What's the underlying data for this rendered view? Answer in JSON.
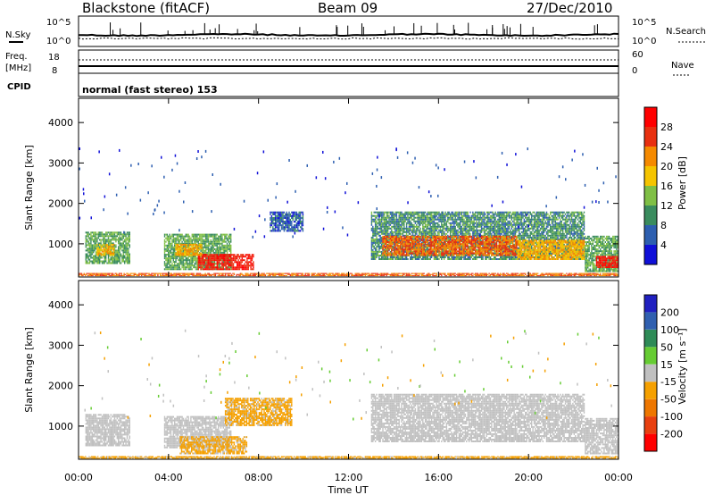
{
  "header": {
    "station": "Blackstone (fitACF)",
    "beam": "Beam 09",
    "date": "27/Dec/2010"
  },
  "aux_panels": {
    "nsky_label": "N.Sky",
    "nsky_ticks": [
      "10^5",
      "10^0"
    ],
    "nsearch_label": "N.Search",
    "freq_label": "Freq.",
    "freq_unit": "[MHz]",
    "freq_ticks": [
      "18",
      "8"
    ],
    "nave_label": "Nave",
    "nave_ticks": [
      "60",
      "0"
    ],
    "cpid_label": "CPID",
    "cpid_text": "normal (fast stereo) 153"
  },
  "colors": {
    "power": [
      "#1010d8",
      "#2d5fb0",
      "#3a8c5e",
      "#7fbf45",
      "#f5c400",
      "#f58a00",
      "#e83010",
      "#ff0000"
    ],
    "velocity": [
      "#2020c0",
      "#3060b0",
      "#2e8b57",
      "#66cc33",
      "#c0c0c0",
      "#f5a000",
      "#ee7700",
      "#e84010",
      "#ff0000"
    ],
    "ground_scatter": "#c0c0c0"
  },
  "chart_data": [
    {
      "type": "heatmap",
      "parameter": "power",
      "ylabel": "Slant Range [km]",
      "yticks": [
        1000,
        2000,
        3000,
        4000
      ],
      "ylim": [
        180,
        4600
      ],
      "xlim_hours": [
        0,
        24
      ],
      "colorbar": {
        "label": "Power [dB]",
        "ticks": [
          "4",
          "8",
          "12",
          "16",
          "20",
          "24",
          "28"
        ],
        "range": [
          0,
          32
        ]
      },
      "regions": [
        {
          "t0": 0.3,
          "t1": 2.3,
          "r0": 500,
          "r1": 1300,
          "power": 12
        },
        {
          "t0": 0.8,
          "t1": 1.6,
          "r0": 700,
          "r1": 1000,
          "power": 20
        },
        {
          "t0": 3.8,
          "t1": 6.8,
          "r0": 350,
          "r1": 1250,
          "power": 12
        },
        {
          "t0": 5.3,
          "t1": 7.8,
          "r0": 350,
          "r1": 750,
          "power": 28
        },
        {
          "t0": 4.3,
          "t1": 5.5,
          "r0": 700,
          "r1": 1000,
          "power": 20
        },
        {
          "t0": 8.5,
          "t1": 10.0,
          "r0": 1300,
          "r1": 1800,
          "power": 6
        },
        {
          "t0": 13.0,
          "t1": 22.5,
          "r0": 600,
          "r1": 1800,
          "power": 10
        },
        {
          "t0": 13.5,
          "t1": 19.5,
          "r0": 700,
          "r1": 1200,
          "power": 24
        },
        {
          "t0": 19.5,
          "t1": 22.5,
          "r0": 600,
          "r1": 1100,
          "power": 20
        },
        {
          "t0": 22.5,
          "t1": 24.0,
          "r0": 300,
          "r1": 1200,
          "power": 12
        },
        {
          "t0": 23.0,
          "t1": 24.0,
          "r0": 400,
          "r1": 700,
          "power": 28
        },
        {
          "t0": 0.0,
          "t1": 24.0,
          "r0": 200,
          "r1": 280,
          "power": 24
        }
      ]
    },
    {
      "type": "heatmap",
      "parameter": "velocity",
      "ylabel": "Slant Range [km]",
      "yticks": [
        1000,
        2000,
        3000,
        4000
      ],
      "ylim": [
        180,
        4600
      ],
      "xlim_hours": [
        0,
        24
      ],
      "xticks": [
        "00:00",
        "04:00",
        "08:00",
        "12:00",
        "16:00",
        "20:00",
        "00:00"
      ],
      "xlabel": "Time UT",
      "colorbar": {
        "label": "Velocity [m s⁻¹]",
        "ticks": [
          "200",
          "100",
          "50",
          "15",
          "-15",
          "-50",
          "-100",
          "-200"
        ],
        "range": [
          -250,
          250
        ]
      },
      "regions": [
        {
          "t0": 0.3,
          "t1": 2.3,
          "r0": 500,
          "r1": 1300,
          "velocity": 0
        },
        {
          "t0": 3.8,
          "t1": 6.8,
          "r0": 450,
          "r1": 1250,
          "velocity": 0
        },
        {
          "t0": 4.5,
          "t1": 7.5,
          "r0": 300,
          "r1": 750,
          "velocity": -40
        },
        {
          "t0": 6.5,
          "t1": 9.5,
          "r0": 1000,
          "r1": 1700,
          "velocity": -40
        },
        {
          "t0": 13.0,
          "t1": 22.5,
          "r0": 600,
          "r1": 1800,
          "velocity": 0
        },
        {
          "t0": 22.5,
          "t1": 24.0,
          "r0": 300,
          "r1": 1200,
          "velocity": 0
        },
        {
          "t0": 0.0,
          "t1": 24.0,
          "r0": 200,
          "r1": 260,
          "velocity": -40
        }
      ]
    }
  ]
}
